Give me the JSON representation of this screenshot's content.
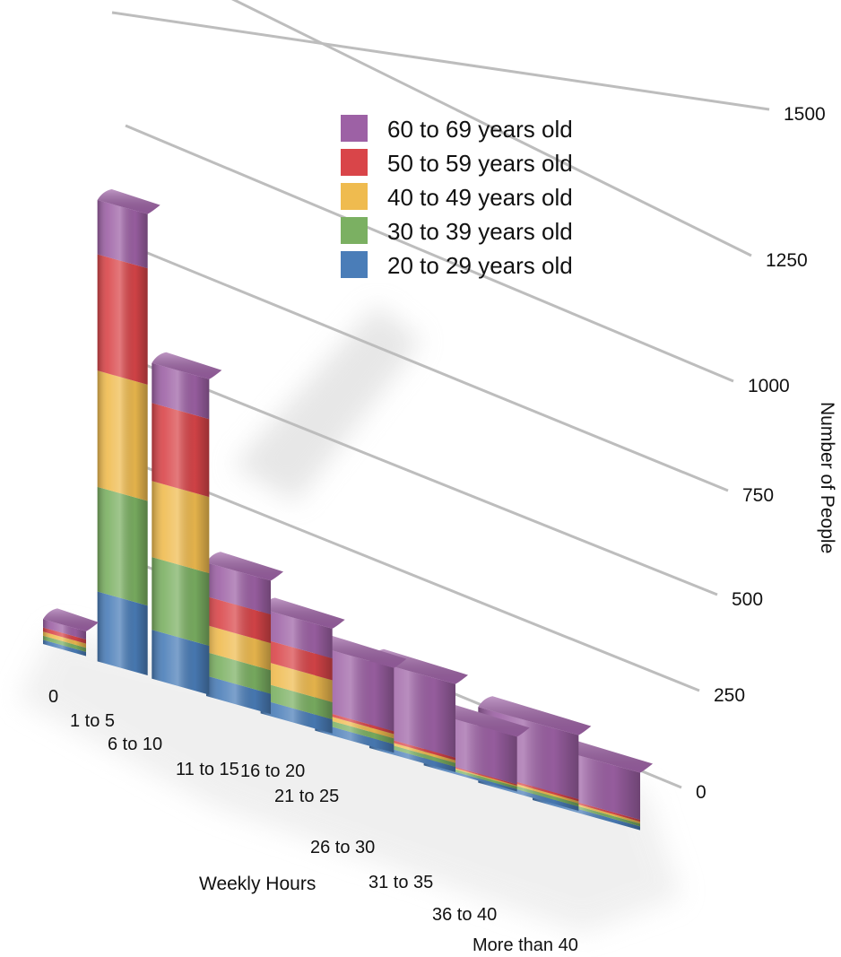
{
  "chart_data": {
    "type": "bar",
    "stacked": true,
    "three_d": true,
    "xlabel": "Weekly Hours",
    "ylabel": "Number of People",
    "ylim": [
      0,
      1500
    ],
    "y_ticks": [
      "0",
      "250",
      "500",
      "750",
      "1000",
      "1250",
      "1500"
    ],
    "grid": true,
    "legend_position": "top-right",
    "categories": [
      "0",
      "1 to 5",
      "6 to 10",
      "11 to 15",
      "16 to 20",
      "21 to 25",
      "26 to 30",
      "31 to 35",
      "36 to 40",
      "More than 40"
    ],
    "series": [
      {
        "name": "20 to 29 years old",
        "color": "#4a7db8",
        "values": [
          10,
          180,
          135,
          60,
          45,
          30,
          20,
          10,
          20,
          20
        ]
      },
      {
        "name": "30 to 39 years old",
        "color": "#7bb062",
        "values": [
          10,
          270,
          200,
          70,
          55,
          20,
          15,
          10,
          15,
          15
        ]
      },
      {
        "name": "40 to 49 years old",
        "color": "#efbb4f",
        "values": [
          10,
          300,
          210,
          80,
          70,
          15,
          10,
          5,
          10,
          10
        ]
      },
      {
        "name": "50 to 59 years old",
        "color": "#d94549",
        "values": [
          10,
          300,
          215,
          85,
          70,
          10,
          10,
          5,
          10,
          10
        ]
      },
      {
        "name": "60 to 69 years old",
        "color": "#9d61a5",
        "values": [
          20,
          140,
          110,
          100,
          95,
          220,
          280,
          200,
          300,
          250
        ]
      }
    ]
  }
}
